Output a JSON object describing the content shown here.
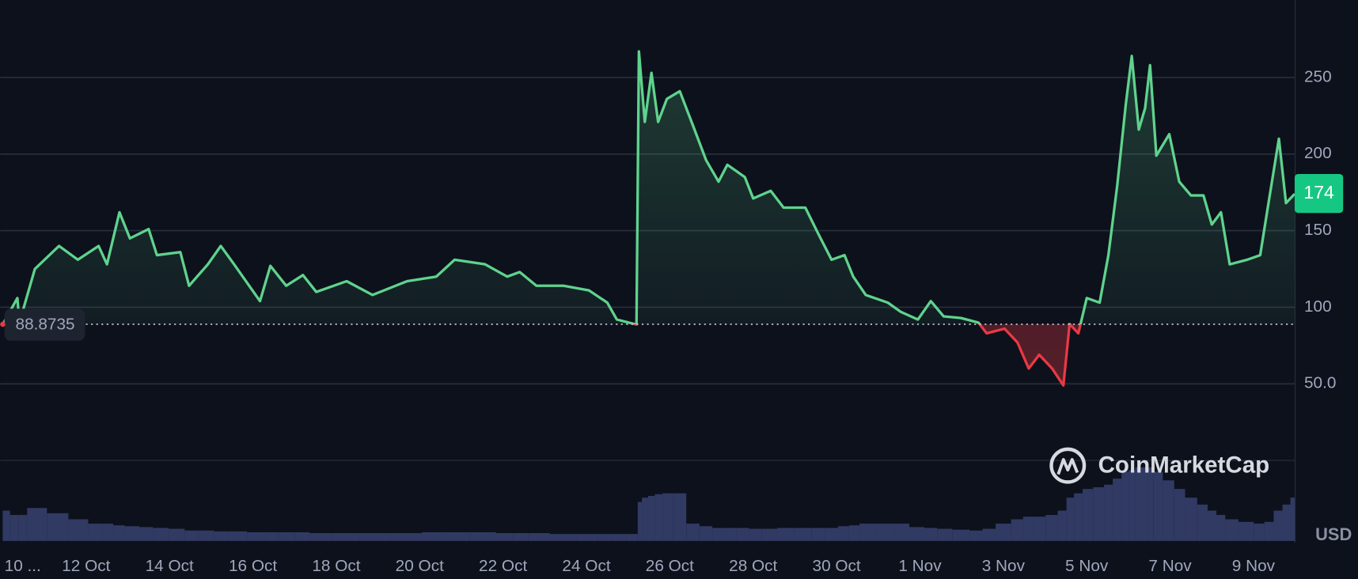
{
  "chart_data": {
    "type": "line",
    "currency": "USD",
    "watermark": "CoinMarketCap",
    "baseline": 88.8735,
    "current_price": 174,
    "colors": {
      "up": "#5fd38d",
      "down": "#ea3943",
      "volume": "#313a63",
      "grid": "#2a2f3d"
    },
    "xlim": [
      0,
      31
    ],
    "xticks": [
      {
        "value": 0,
        "label": "10 ..."
      },
      {
        "value": 2,
        "label": "12 Oct"
      },
      {
        "value": 4,
        "label": "14 Oct"
      },
      {
        "value": 6,
        "label": "16 Oct"
      },
      {
        "value": 8,
        "label": "18 Oct"
      },
      {
        "value": 10,
        "label": "20 Oct"
      },
      {
        "value": 12,
        "label": "22 Oct"
      },
      {
        "value": 14,
        "label": "24 Oct"
      },
      {
        "value": 16,
        "label": "26 Oct"
      },
      {
        "value": 18,
        "label": "28 Oct"
      },
      {
        "value": 20,
        "label": "30 Oct"
      },
      {
        "value": 22,
        "label": "1 Nov"
      },
      {
        "value": 24,
        "label": "3 Nov"
      },
      {
        "value": 26,
        "label": "5 Nov"
      },
      {
        "value": 28,
        "label": "7 Nov"
      },
      {
        "value": 30,
        "label": "9 Nov"
      }
    ],
    "ylim": [
      0,
      300
    ],
    "yticks": [
      {
        "value": 50,
        "label": "50.0"
      },
      100,
      150,
      200,
      250
    ],
    "grid": true,
    "x": [
      0,
      0.35,
      0.4,
      0.77,
      1.35,
      1.8,
      2.3,
      2.5,
      2.8,
      3.05,
      3.5,
      3.7,
      4.26,
      4.47,
      4.92,
      5.23,
      5.55,
      6.17,
      6.42,
      6.8,
      7.2,
      7.52,
      8.25,
      8.87,
      9.7,
      10.4,
      10.84,
      11.57,
      12.1,
      12.4,
      12.8,
      13.45,
      14.06,
      14.5,
      14.73,
      15.2,
      15.26,
      15.4,
      15.56,
      15.72,
      15.93,
      16.24,
      16.55,
      16.87,
      17.17,
      17.38,
      17.8,
      18.0,
      18.42,
      18.73,
      19.25,
      19.56,
      19.88,
      20.19,
      20.4,
      20.7,
      21.23,
      21.54,
      21.95,
      22.26,
      22.57,
      22.98,
      23.4,
      23.6,
      24.03,
      24.34,
      24.61,
      24.86,
      25.17,
      25.44,
      25.59,
      25.8,
      26.0,
      26.31,
      26.52,
      26.73,
      26.94,
      27.08,
      27.25,
      27.4,
      27.52,
      27.67,
      27.98,
      28.22,
      28.5,
      28.8,
      29.0,
      29.22,
      29.43,
      29.85,
      30.16,
      30.36,
      30.61,
      30.78,
      30.99
    ],
    "values": [
      88.7,
      106,
      90,
      125,
      140,
      131,
      140,
      128,
      162,
      145,
      151,
      134,
      136,
      114,
      128,
      140,
      128,
      104,
      127,
      114,
      121,
      110,
      117,
      108,
      117,
      120,
      131,
      128,
      120,
      123,
      114,
      114,
      111,
      103,
      92,
      88.7,
      267,
      221,
      253,
      221,
      236,
      241,
      219,
      196,
      182,
      193,
      185,
      171,
      176,
      165,
      165,
      148,
      131,
      134,
      120,
      108,
      103,
      97,
      92,
      104,
      94,
      93,
      90,
      83,
      86,
      77,
      60,
      69,
      60,
      49,
      89,
      83,
      106,
      103,
      134,
      179,
      233,
      264,
      216,
      230,
      258,
      199,
      213,
      182,
      173,
      173,
      154,
      162,
      128,
      131,
      134,
      168,
      210,
      168,
      174
    ],
    "volume": [
      35,
      30,
      30,
      38,
      32,
      25,
      20,
      20,
      18,
      17,
      16,
      15,
      14,
      12,
      12,
      11,
      11,
      10,
      10,
      10,
      10,
      9,
      9,
      9,
      9,
      10,
      10,
      10,
      9,
      9,
      9,
      8,
      8,
      8,
      8,
      8,
      45,
      50,
      52,
      54,
      55,
      55,
      20,
      17,
      15,
      15,
      15,
      14,
      14,
      15,
      15,
      15,
      15,
      17,
      18,
      20,
      20,
      20,
      16,
      15,
      14,
      13,
      12,
      14,
      20,
      25,
      28,
      28,
      30,
      35,
      50,
      55,
      60,
      62,
      65,
      72,
      80,
      82,
      85,
      85,
      85,
      80,
      70,
      60,
      50,
      42,
      35,
      30,
      25,
      22,
      20,
      22,
      35,
      42,
      50
    ]
  }
}
